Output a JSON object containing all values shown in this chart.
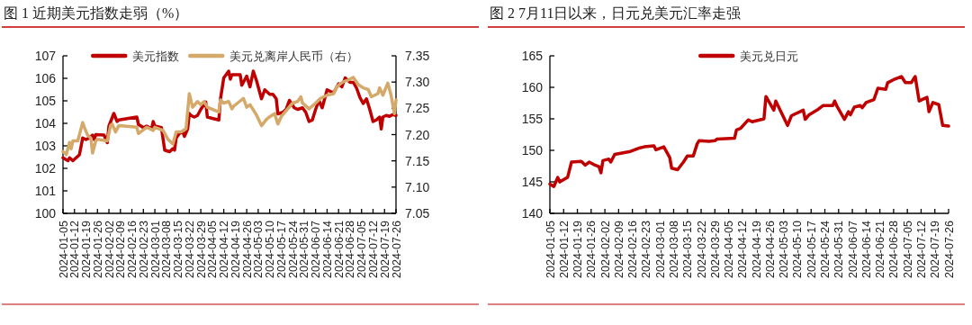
{
  "chart_data": [
    {
      "type": "line",
      "title": "图 1  近期美元指数走弱（%）",
      "xlim": [
        "2024-01-05",
        "2024-07-26"
      ],
      "xticks": [
        "2024-01-05",
        "2024-01-12",
        "2024-01-19",
        "2024-01-26",
        "2024-02-02",
        "2024-02-09",
        "2024-02-16",
        "2024-02-23",
        "2024-03-01",
        "2024-03-08",
        "2024-03-15",
        "2024-03-22",
        "2024-03-29",
        "2024-04-05",
        "2024-04-12",
        "2024-04-19",
        "2024-04-26",
        "2024-05-03",
        "2024-05-10",
        "2024-05-17",
        "2024-05-24",
        "2024-05-31",
        "2024-06-07",
        "2024-06-14",
        "2024-06-21",
        "2024-06-28",
        "2024-07-05",
        "2024-07-12",
        "2024-07-19",
        "2024-07-26"
      ],
      "ylim": [
        100,
        107
      ],
      "yticks": [
        100,
        101,
        102,
        103,
        104,
        105,
        106,
        107
      ],
      "y2lim": [
        7.05,
        7.35
      ],
      "y2ticks": [
        {
          "value": 7.05,
          "label": "7.05"
        },
        {
          "value": 7.1,
          "label": "7.10"
        },
        {
          "value": 7.15,
          "label": "7.15"
        },
        {
          "value": 7.2,
          "label": "7.20"
        },
        {
          "value": 7.25,
          "label": "7.25"
        },
        {
          "value": 7.3,
          "label": "7.30"
        },
        {
          "value": 7.35,
          "label": "7.35"
        }
      ],
      "legend": "top",
      "series": [
        {
          "name": "美元指数",
          "color": "#c00000",
          "x": [
            "2024-01-05",
            "2024-01-08",
            "2024-01-09",
            "2024-01-11",
            "2024-01-15",
            "2024-01-17",
            "2024-01-19",
            "2024-01-21",
            "2024-01-23",
            "2024-01-24",
            "2024-01-25",
            "2024-01-30",
            "2024-02-01",
            "2024-02-02",
            "2024-02-05",
            "2024-02-07",
            "2024-02-08",
            "2024-02-19",
            "2024-02-20",
            "2024-02-23",
            "2024-02-25",
            "2024-02-28",
            "2024-02-29",
            "2024-03-01",
            "2024-03-05",
            "2024-03-07",
            "2024-03-10",
            "2024-03-12",
            "2024-03-13",
            "2024-03-14",
            "2024-03-16",
            "2024-03-18",
            "2024-03-19",
            "2024-03-21",
            "2024-03-22",
            "2024-03-23",
            "2024-03-25",
            "2024-03-27",
            "2024-03-29",
            "2024-04-01",
            "2024-04-02",
            "2024-04-05",
            "2024-04-09",
            "2024-04-10",
            "2024-04-12",
            "2024-04-15",
            "2024-04-16",
            "2024-04-17",
            "2024-04-22",
            "2024-04-23",
            "2024-04-26",
            "2024-04-28",
            "2024-04-30",
            "2024-05-02",
            "2024-05-05",
            "2024-05-07",
            "2024-05-10",
            "2024-05-12",
            "2024-05-14",
            "2024-05-15",
            "2024-05-18",
            "2024-05-20",
            "2024-05-22",
            "2024-05-25",
            "2024-05-27",
            "2024-05-30",
            "2024-06-01",
            "2024-06-03",
            "2024-06-05",
            "2024-06-07",
            "2024-06-09",
            "2024-06-11",
            "2024-06-14",
            "2024-06-16",
            "2024-06-18",
            "2024-06-21",
            "2024-06-23",
            "2024-06-25",
            "2024-06-28",
            "2024-06-30",
            "2024-07-02",
            "2024-07-04",
            "2024-07-06",
            "2024-07-08",
            "2024-07-10",
            "2024-07-12",
            "2024-07-14",
            "2024-07-16",
            "2024-07-17",
            "2024-07-18",
            "2024-07-20",
            "2024-07-22",
            "2024-07-24",
            "2024-07-26"
          ],
          "values": [
            102.47,
            102.34,
            102.47,
            102.34,
            102.6,
            103.35,
            103.28,
            103.35,
            103.48,
            103.28,
            103.5,
            103.48,
            103.14,
            103.88,
            104.44,
            104.08,
            104.15,
            104.28,
            103.95,
            103.81,
            103.88,
            103.75,
            104.08,
            103.88,
            103.81,
            102.81,
            102.74,
            102.88,
            102.81,
            103.35,
            103.55,
            103.62,
            103.42,
            103.75,
            104.44,
            104.35,
            104.28,
            104.35,
            104.62,
            104.95,
            104.28,
            104.22,
            104.15,
            105.09,
            106.02,
            106.32,
            105.96,
            106.16,
            106.16,
            105.69,
            106.1,
            105.62,
            106.32,
            105.89,
            105.09,
            105.49,
            105.29,
            105.29,
            105.09,
            104.42,
            104.49,
            104.62,
            105.02,
            104.69,
            104.62,
            104.69,
            104.49,
            104.08,
            104.15,
            104.62,
            105.02,
            104.69,
            105.49,
            105.42,
            105.36,
            105.76,
            105.62,
            106.02,
            105.82,
            105.82,
            105.56,
            105.15,
            104.88,
            105.09,
            104.62,
            104.08,
            104.15,
            104.28,
            103.75,
            104.28,
            104.35,
            104.31,
            104.39,
            104.35
          ]
        },
        {
          "name": "美元兑离岸人民币（右）",
          "color": "#d4a96a",
          "axis": "y2",
          "x": [
            "2024-01-05",
            "2024-01-07",
            "2024-01-09",
            "2024-01-10",
            "2024-01-11",
            "2024-01-14",
            "2024-01-17",
            "2024-01-18",
            "2024-01-20",
            "2024-01-22",
            "2024-01-23",
            "2024-01-25",
            "2024-01-26",
            "2024-02-01",
            "2024-02-03",
            "2024-02-04",
            "2024-02-06",
            "2024-02-08",
            "2024-02-19",
            "2024-02-20",
            "2024-02-25",
            "2024-02-29",
            "2024-03-01",
            "2024-03-06",
            "2024-03-09",
            "2024-03-12",
            "2024-03-14",
            "2024-03-17",
            "2024-03-20",
            "2024-03-22",
            "2024-03-24",
            "2024-03-27",
            "2024-03-29",
            "2024-03-31",
            "2024-04-02",
            "2024-04-09",
            "2024-04-10",
            "2024-04-12",
            "2024-04-15",
            "2024-04-17",
            "2024-04-18",
            "2024-04-24",
            "2024-04-26",
            "2024-04-28",
            "2024-05-02",
            "2024-05-05",
            "2024-05-08",
            "2024-05-10",
            "2024-05-13",
            "2024-05-15",
            "2024-05-17",
            "2024-05-21",
            "2024-05-24",
            "2024-05-27",
            "2024-05-29",
            "2024-05-30",
            "2024-06-03",
            "2024-06-07",
            "2024-06-10",
            "2024-06-14",
            "2024-06-18",
            "2024-06-20",
            "2024-06-24",
            "2024-06-27",
            "2024-06-30",
            "2024-07-03",
            "2024-07-06",
            "2024-07-09",
            "2024-07-11",
            "2024-07-13",
            "2024-07-15",
            "2024-07-16",
            "2024-07-18",
            "2024-07-21",
            "2024-07-23",
            "2024-07-25",
            "2024-07-26"
          ],
          "values": [
            7.1675,
            7.162,
            7.185,
            7.173,
            7.188,
            7.188,
            7.223,
            7.214,
            7.199,
            7.193,
            7.165,
            7.188,
            7.191,
            7.188,
            7.217,
            7.22,
            7.205,
            7.217,
            7.214,
            7.202,
            7.214,
            7.208,
            7.214,
            7.208,
            7.191,
            7.182,
            7.205,
            7.205,
            7.211,
            7.278,
            7.252,
            7.263,
            7.257,
            7.263,
            7.252,
            7.243,
            7.266,
            7.26,
            7.263,
            7.249,
            7.254,
            7.269,
            7.252,
            7.257,
            7.237,
            7.217,
            7.229,
            7.234,
            7.24,
            7.22,
            7.234,
            7.249,
            7.26,
            7.263,
            7.272,
            7.26,
            7.249,
            7.26,
            7.269,
            7.275,
            7.278,
            7.292,
            7.301,
            7.304,
            7.309,
            7.295,
            7.289,
            7.286,
            7.272,
            7.275,
            7.278,
            7.289,
            7.275,
            7.298,
            7.275,
            7.24,
            7.266
          ]
        }
      ]
    },
    {
      "type": "line",
      "title": "图 2 7月11日以来，日元兑美元汇率走强",
      "xlim": [
        "2024-01-05",
        "2024-07-26"
      ],
      "xticks": [
        "2024-01-05",
        "2024-01-12",
        "2024-01-19",
        "2024-01-26",
        "2024-02-02",
        "2024-02-09",
        "2024-02-16",
        "2024-02-23",
        "2024-03-01",
        "2024-03-08",
        "2024-03-15",
        "2024-03-22",
        "2024-03-29",
        "2024-04-05",
        "2024-04-12",
        "2024-04-19",
        "2024-04-26",
        "2024-05-03",
        "2024-05-10",
        "2024-05-17",
        "2024-05-24",
        "2024-05-31",
        "2024-06-07",
        "2024-06-14",
        "2024-06-21",
        "2024-06-28",
        "2024-07-05",
        "2024-07-12",
        "2024-07-19",
        "2024-07-26"
      ],
      "ylim": [
        140,
        165
      ],
      "yticks": [
        140,
        145,
        150,
        155,
        160,
        165
      ],
      "legend": "top",
      "series": [
        {
          "name": "美元兑日元",
          "color": "#c00000",
          "x": [
            "2024-01-05",
            "2024-01-07",
            "2024-01-09",
            "2024-01-10",
            "2024-01-14",
            "2024-01-16",
            "2024-01-21",
            "2024-01-23",
            "2024-01-25",
            "2024-01-28",
            "2024-01-30",
            "2024-01-31",
            "2024-02-01",
            "2024-02-04",
            "2024-02-05",
            "2024-02-07",
            "2024-02-15",
            "2024-02-19",
            "2024-02-22",
            "2024-02-27",
            "2024-02-28",
            "2024-03-03",
            "2024-03-06",
            "2024-03-07",
            "2024-03-10",
            "2024-03-13",
            "2024-03-15",
            "2024-03-18",
            "2024-03-20",
            "2024-03-21",
            "2024-03-26",
            "2024-03-29",
            "2024-03-30",
            "2024-04-08",
            "2024-04-09",
            "2024-04-11",
            "2024-04-15",
            "2024-04-17",
            "2024-04-23",
            "2024-04-24",
            "2024-04-28",
            "2024-04-29",
            "2024-05-05",
            "2024-05-07",
            "2024-05-13",
            "2024-05-14",
            "2024-05-16",
            "2024-05-20",
            "2024-05-23",
            "2024-05-28",
            "2024-05-29",
            "2024-05-30",
            "2024-06-03",
            "2024-06-05",
            "2024-06-06",
            "2024-06-08",
            "2024-06-11",
            "2024-06-12",
            "2024-06-14",
            "2024-06-18",
            "2024-06-20",
            "2024-06-24",
            "2024-06-25",
            "2024-06-28",
            "2024-07-02",
            "2024-07-04",
            "2024-07-07",
            "2024-07-09",
            "2024-07-11",
            "2024-07-15",
            "2024-07-16",
            "2024-07-18",
            "2024-07-21",
            "2024-07-23",
            "2024-07-26"
          ],
          "values": [
            144.65,
            144.26,
            145.7,
            144.99,
            145.7,
            148.14,
            148.24,
            147.65,
            148.14,
            147.65,
            147.41,
            146.44,
            148.38,
            148.62,
            148.14,
            149.35,
            149.83,
            150.32,
            150.56,
            150.71,
            150.08,
            150.56,
            148.87,
            147.17,
            146.93,
            148.14,
            149.11,
            149.11,
            151.05,
            151.53,
            151.43,
            151.53,
            151.77,
            151.92,
            153.23,
            153.47,
            154.83,
            154.53,
            155.01,
            158.55,
            156.38,
            157.83,
            153.95,
            155.5,
            156.38,
            154.92,
            155.65,
            156.38,
            157.1,
            157.1,
            157.83,
            157.1,
            154.92,
            156.13,
            155.65,
            156.86,
            157.1,
            156.76,
            157.59,
            158.07,
            159.86,
            159.67,
            160.74,
            161.22,
            161.71,
            160.74,
            160.74,
            161.71,
            157.83,
            158.41,
            156.13,
            157.59,
            157.25,
            153.95,
            153.86
          ]
        }
      ]
    }
  ]
}
